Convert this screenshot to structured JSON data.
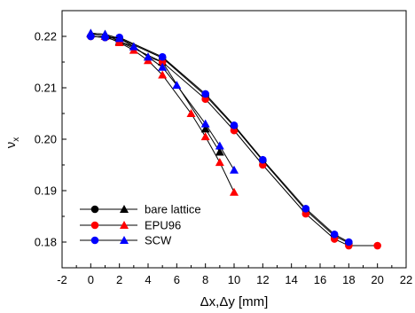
{
  "chart_data": {
    "type": "line",
    "xlabel": "Δx,Δy [mm]",
    "ylabel": "ν",
    "ylabel_sub": "x",
    "xlim": [
      -2,
      22
    ],
    "ylim": [
      0.175,
      0.225
    ],
    "xticks": [
      -2,
      0,
      2,
      4,
      6,
      8,
      10,
      12,
      14,
      16,
      18,
      20,
      22
    ],
    "yticks": [
      0.18,
      0.19,
      0.2,
      0.21,
      0.22
    ],
    "ytick_labels": [
      "0.18",
      "0.19",
      "0.20",
      "0.21",
      "0.22"
    ],
    "grid": false,
    "legend_position": "bottom-left",
    "series": [
      {
        "name": "bare lattice",
        "legend_label": "bare lattice",
        "plane": "x",
        "marker": "circle",
        "color": "#000000",
        "x": [
          0,
          1,
          2,
          5,
          8,
          10,
          12,
          15,
          17,
          18
        ],
        "y": [
          0.22,
          0.2198,
          0.2196,
          0.2158,
          0.2085,
          0.2025,
          0.1958,
          0.1862,
          0.1812,
          0.1798
        ]
      },
      {
        "name": "bare lattice",
        "plane": "y",
        "marker": "triangle",
        "color": "#000000",
        "x": [
          0,
          1,
          2,
          3,
          4,
          5,
          8,
          9
        ],
        "y": [
          0.2206,
          0.2204,
          0.219,
          0.218,
          0.216,
          0.215,
          0.202,
          0.1975
        ]
      },
      {
        "name": "EPU96",
        "legend_label": "EPU96",
        "plane": "x",
        "marker": "circle",
        "color": "#ff0000",
        "x": [
          0,
          1,
          2,
          5,
          8,
          10,
          12,
          15,
          17,
          18,
          20
        ],
        "y": [
          0.22,
          0.2198,
          0.219,
          0.215,
          0.2078,
          0.2017,
          0.195,
          0.1855,
          0.1806,
          0.1793,
          0.1793
        ]
      },
      {
        "name": "EPU96",
        "plane": "y",
        "marker": "triangle",
        "color": "#ff0000",
        "x": [
          0,
          1,
          2,
          3,
          4,
          5,
          7,
          8,
          9,
          10
        ],
        "y": [
          0.2205,
          0.22,
          0.2188,
          0.2173,
          0.2153,
          0.2125,
          0.205,
          0.2005,
          0.1955,
          0.1897
        ]
      },
      {
        "name": "SCW",
        "legend_label": "SCW",
        "plane": "x",
        "marker": "circle",
        "color": "#0000ff",
        "x": [
          0,
          1,
          2,
          5,
          8,
          10,
          12,
          15,
          17,
          18
        ],
        "y": [
          0.22,
          0.2198,
          0.2198,
          0.216,
          0.2088,
          0.2027,
          0.196,
          0.1865,
          0.1815,
          0.18
        ]
      },
      {
        "name": "SCW",
        "plane": "y",
        "marker": "triangle",
        "color": "#0000ff",
        "x": [
          0,
          1,
          2,
          3,
          4,
          5,
          6,
          8,
          9,
          10
        ],
        "y": [
          0.2206,
          0.2204,
          0.2196,
          0.218,
          0.216,
          0.214,
          0.2105,
          0.203,
          0.1987,
          0.194
        ]
      }
    ]
  }
}
